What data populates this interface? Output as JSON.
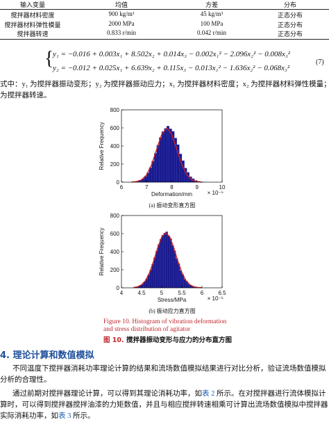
{
  "table": {
    "header": [
      "输入变量",
      "均值",
      "方差",
      "分布"
    ],
    "rows": [
      [
        "搅拌器材料密度",
        "900 kg/m³",
        "45 kg/m³",
        "正态分布"
      ],
      [
        "搅拌器材料弹性模量",
        "2000 MPa",
        "100 MPa",
        "正态分布"
      ],
      [
        "搅拌器转速",
        "0.833 r/min",
        "0.042 r/min",
        "正态分布"
      ]
    ]
  },
  "equation": {
    "lines": [
      "y₁ = −0.016 + 0.003x₁ + 8.502x₂ + 0.014x₃ − 0.002x₁² − 2.096x₂² − 0.008x₃²",
      "y₂ = −0.012 + 0.025x₁ + 6.639x₂ + 0.115x₃ − 0.013x₁² − 1.636x₂² − 0.068x₃²"
    ],
    "number": "(7)"
  },
  "definition": {
    "lines": [
      "式中：y₁ 为搅拌器振动变形；y₂ 为搅拌器振动应力；x₁ 为搅拌器材料密度；x₂ 为搅拌器材料弹性模量；x₃",
      "为搅拌器转速。"
    ]
  },
  "figure10": {
    "charts": [
      {
        "type": "histogram",
        "xlabel": "Deformation/mm",
        "ylabel": "Relative Frequency",
        "x_multiplier": "× 10⁻⁵",
        "bins": [
          6.5,
          6.6,
          6.7,
          6.8,
          6.9,
          7.0,
          7.1,
          7.2,
          7.3,
          7.4,
          7.5,
          7.6,
          7.7,
          7.8,
          7.9,
          8.0,
          8.1,
          8.2,
          8.3,
          8.4,
          8.5,
          8.6,
          8.7,
          8.8,
          8.9,
          9.0,
          9.1,
          9.2,
          9.3
        ],
        "counts": [
          5,
          10,
          19,
          36,
          63,
          103,
          160,
          233,
          319,
          409,
          494,
          559,
          595,
          620,
          590,
          562,
          488,
          415,
          312,
          238,
          155,
          108,
          60,
          38,
          17,
          11,
          4,
          2
        ],
        "color": "#1a1a8c",
        "fit": {
          "x": [
            6.4,
            6.6,
            6.8,
            7.0,
            7.2,
            7.4,
            7.6,
            7.8,
            8.0,
            8.2,
            8.4,
            8.6,
            8.8,
            9.0,
            9.2
          ],
          "y": [
            1,
            7,
            26,
            81,
            195,
            364,
            529,
            600,
            529,
            364,
            195,
            81,
            26,
            7,
            1
          ],
          "color": "#cc2222"
        },
        "xlim": [
          6,
          10
        ],
        "ylim": [
          0,
          800
        ],
        "xticks": [
          6,
          7,
          8,
          9,
          10
        ],
        "yticks": [
          0,
          200,
          400,
          600,
          800
        ],
        "subcaption": "(a)  振动变形直方图"
      },
      {
        "type": "histogram",
        "xlabel": "Stress/MPa",
        "ylabel": "Relative Frequency",
        "x_multiplier": "× 10⁻⁵",
        "bins": [
          4.3,
          4.35,
          4.4,
          4.45,
          4.5,
          4.55,
          4.6,
          4.65,
          4.7,
          4.75,
          4.8,
          4.85,
          4.9,
          4.95,
          5.0,
          5.05,
          5.1,
          5.15,
          5.2,
          5.25,
          5.3,
          5.35,
          5.4,
          5.45,
          5.5,
          5.55,
          5.6,
          5.65,
          5.7,
          5.75,
          5.8,
          5.85,
          5.9,
          5.95,
          6.0
        ],
        "counts": [
          5,
          9,
          16,
          27,
          43,
          67,
          100,
          144,
          198,
          262,
          333,
          407,
          478,
          538,
          583,
          607,
          620,
          575,
          545,
          470,
          410,
          325,
          268,
          190,
          148,
          96,
          70,
          40,
          28,
          15,
          10,
          6,
          3,
          1
        ],
        "color": "#1a1a8c",
        "fit": {
          "x": [
            4.3,
            4.4,
            4.5,
            4.6,
            4.7,
            4.8,
            4.9,
            5.0,
            5.1,
            5.2,
            5.3,
            5.4,
            5.5,
            5.6,
            5.7,
            5.8,
            5.9,
            6.0
          ],
          "y": [
            4,
            12,
            34,
            82,
            170,
            297,
            443,
            563,
            610,
            563,
            443,
            297,
            170,
            82,
            34,
            12,
            4,
            1
          ],
          "color": "#cc2222"
        },
        "xlim": [
          4,
          6.5
        ],
        "ylim": [
          0,
          800
        ],
        "xticks": [
          4,
          4.5,
          5,
          5.5,
          6,
          6.5
        ],
        "yticks": [
          0,
          200,
          400,
          600,
          800
        ],
        "subcaption": "(b)  振动应力直方图"
      }
    ],
    "caption_en": [
      "Figure 10. Histogram of vibration deformation",
      "and stress distribution of agitator"
    ],
    "caption_cn": {
      "label": "图 10.",
      "text": "搅拌器振动变形与应力的分布直方图"
    }
  },
  "section": {
    "number": "4.",
    "title": "理论计算和数值模拟"
  },
  "paragraphs": [
    [
      "不同温度下搅拌器消耗功率理论计算的结果和流场数值模拟结果进行对比分析，验证流场数值模拟",
      "分析的合理性。"
    ],
    [
      [
        "通过前期对搅拌器理论计算，可以得到其理论消耗功率，如",
        "表 2",
        " 所示。在对搅拌器进行流体模拟计"
      ],
      "算时，可以得到搅拌器搅拌油漆的力矩数值，并且与相应搅拌转速相乘可计算出流场数值模拟中搅拌器",
      [
        "实际消耗功率，如",
        "表 3",
        " 所示。"
      ]
    ]
  ]
}
